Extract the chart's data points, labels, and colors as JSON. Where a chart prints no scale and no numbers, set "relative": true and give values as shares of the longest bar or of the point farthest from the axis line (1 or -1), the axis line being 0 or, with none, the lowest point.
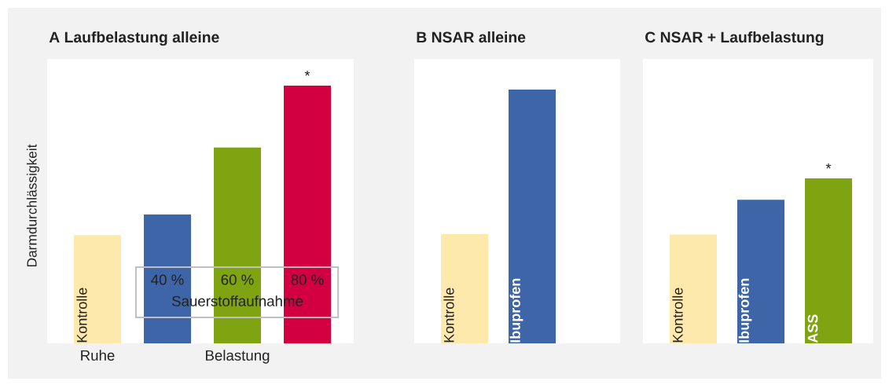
{
  "chart_data": [
    {
      "type": "bar",
      "relative": true,
      "title": "A Laufbelastung alleine",
      "ylabel": "Darmdurchlässigkeit",
      "categories": [
        "Kontrolle",
        "40 %",
        "60 %",
        "80 %"
      ],
      "values": [
        0.42,
        0.5,
        0.76,
        1
      ],
      "colors": [
        "#fee9ad",
        "#3e65a8",
        "#80a312",
        "#d20041"
      ],
      "annotations": [
        {
          "text": "*",
          "x": "80 %",
          "y": 1
        },
        "Sauerstoffaufnahme",
        "Ruhe",
        "Belastung"
      ]
    },
    {
      "type": "bar",
      "relative": true,
      "title": "B NSAR alleine",
      "categories": [
        "Kontrolle",
        "Ibuprofen"
      ],
      "values": [
        0.43,
        1
      ],
      "colors": [
        "#fee9ad",
        "#3e65a8"
      ]
    },
    {
      "type": "bar",
      "relative": true,
      "title": "C NSAR + Laufbelastung",
      "categories": [
        "Kontrolle",
        "Ibuprofen",
        "ASS"
      ],
      "values": [
        0.66,
        0.87,
        1
      ],
      "colors": [
        "#fee9ad",
        "#3e65a8",
        "#80a312"
      ],
      "annotations": [
        {
          "text": "*",
          "x": "ASS",
          "y": 1
        }
      ]
    }
  ]
}
